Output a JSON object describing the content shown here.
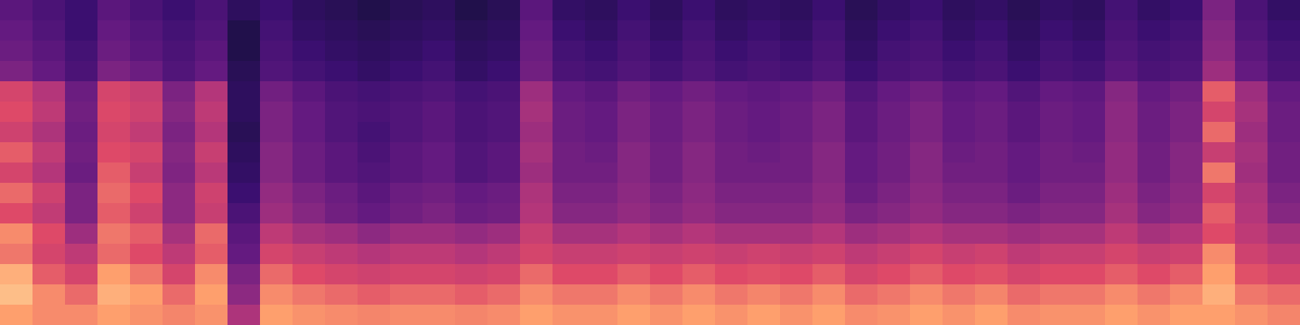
{
  "chart_data": {
    "type": "heatmap",
    "tick_labels": false,
    "zlim": [
      0,
      100
    ],
    "cells": [
      [
        35,
        30,
        25,
        35,
        30,
        25,
        30,
        20,
        25,
        20,
        18,
        15,
        18,
        20,
        15,
        18,
        35,
        22,
        20,
        25,
        20,
        25,
        20,
        22,
        20,
        25,
        18,
        22,
        25,
        20,
        22,
        18,
        22,
        20,
        28,
        22,
        25,
        45,
        30,
        22
      ],
      [
        38,
        32,
        25,
        38,
        33,
        28,
        32,
        15,
        28,
        22,
        20,
        18,
        20,
        22,
        18,
        20,
        38,
        25,
        22,
        28,
        22,
        28,
        22,
        25,
        22,
        28,
        20,
        25,
        28,
        22,
        25,
        20,
        25,
        22,
        30,
        25,
        28,
        48,
        32,
        25
      ],
      [
        40,
        35,
        28,
        40,
        35,
        30,
        35,
        15,
        30,
        25,
        22,
        20,
        22,
        25,
        20,
        22,
        40,
        28,
        25,
        30,
        25,
        30,
        25,
        28,
        25,
        30,
        22,
        28,
        30,
        25,
        28,
        22,
        28,
        25,
        32,
        28,
        30,
        50,
        35,
        28
      ],
      [
        45,
        38,
        30,
        45,
        40,
        32,
        38,
        18,
        32,
        28,
        25,
        22,
        25,
        28,
        22,
        25,
        42,
        30,
        28,
        32,
        28,
        32,
        28,
        30,
        28,
        32,
        25,
        30,
        32,
        28,
        30,
        25,
        30,
        28,
        35,
        30,
        32,
        55,
        38,
        30
      ],
      [
        72,
        62,
        40,
        72,
        68,
        45,
        62,
        20,
        42,
        35,
        30,
        28,
        30,
        32,
        28,
        30,
        55,
        38,
        35,
        42,
        38,
        42,
        38,
        36,
        38,
        42,
        32,
        38,
        42,
        36,
        38,
        32,
        38,
        36,
        48,
        38,
        42,
        78,
        55,
        38
      ],
      [
        75,
        65,
        42,
        74,
        70,
        48,
        65,
        20,
        45,
        38,
        32,
        30,
        32,
        35,
        30,
        32,
        58,
        40,
        38,
        45,
        40,
        45,
        40,
        38,
        40,
        45,
        35,
        40,
        45,
        38,
        40,
        35,
        40,
        38,
        50,
        40,
        45,
        72,
        58,
        40
      ],
      [
        70,
        60,
        40,
        72,
        66,
        45,
        62,
        18,
        45,
        38,
        32,
        28,
        32,
        35,
        30,
        32,
        55,
        40,
        38,
        45,
        40,
        45,
        40,
        38,
        40,
        45,
        35,
        40,
        45,
        38,
        40,
        35,
        40,
        38,
        50,
        40,
        45,
        80,
        55,
        40
      ],
      [
        78,
        66,
        42,
        75,
        72,
        48,
        68,
        20,
        48,
        40,
        35,
        30,
        35,
        38,
        32,
        35,
        58,
        42,
        40,
        48,
        42,
        48,
        42,
        40,
        42,
        48,
        38,
        42,
        48,
        40,
        42,
        38,
        42,
        40,
        52,
        42,
        48,
        68,
        58,
        42
      ],
      [
        72,
        62,
        40,
        78,
        68,
        46,
        64,
        22,
        48,
        40,
        35,
        32,
        35,
        38,
        32,
        35,
        55,
        42,
        42,
        48,
        42,
        48,
        42,
        42,
        42,
        48,
        38,
        42,
        48,
        42,
        42,
        38,
        42,
        42,
        52,
        42,
        48,
        82,
        56,
        42
      ],
      [
        80,
        70,
        45,
        80,
        75,
        50,
        70,
        25,
        52,
        45,
        40,
        35,
        40,
        42,
        38,
        40,
        60,
        45,
        45,
        50,
        45,
        50,
        45,
        45,
        45,
        50,
        40,
        45,
        50,
        45,
        45,
        40,
        45,
        45,
        55,
        45,
        50,
        72,
        60,
        45
      ],
      [
        75,
        66,
        45,
        78,
        70,
        50,
        68,
        30,
        55,
        48,
        42,
        38,
        42,
        45,
        40,
        42,
        62,
        48,
        48,
        52,
        48,
        52,
        48,
        48,
        48,
        52,
        45,
        48,
        52,
        48,
        48,
        45,
        48,
        48,
        58,
        48,
        52,
        78,
        62,
        48
      ],
      [
        85,
        75,
        55,
        82,
        78,
        58,
        80,
        35,
        65,
        58,
        55,
        50,
        55,
        55,
        52,
        55,
        68,
        58,
        58,
        62,
        58,
        62,
        58,
        58,
        58,
        62,
        55,
        58,
        62,
        58,
        58,
        55,
        58,
        58,
        65,
        58,
        62,
        75,
        65,
        58
      ],
      [
        82,
        72,
        65,
        80,
        75,
        65,
        78,
        38,
        72,
        68,
        65,
        62,
        65,
        65,
        62,
        65,
        72,
        68,
        68,
        70,
        68,
        70,
        68,
        70,
        68,
        70,
        65,
        68,
        72,
        68,
        70,
        65,
        68,
        68,
        72,
        68,
        70,
        85,
        70,
        65
      ],
      [
        90,
        78,
        72,
        88,
        82,
        72,
        85,
        45,
        80,
        75,
        72,
        70,
        72,
        72,
        70,
        72,
        80,
        75,
        75,
        78,
        75,
        78,
        75,
        76,
        75,
        78,
        72,
        75,
        78,
        75,
        76,
        72,
        75,
        75,
        78,
        75,
        78,
        88,
        76,
        72
      ],
      [
        92,
        85,
        80,
        90,
        88,
        80,
        88,
        50,
        85,
        82,
        80,
        78,
        80,
        80,
        78,
        80,
        85,
        82,
        82,
        85,
        82,
        85,
        82,
        84,
        82,
        85,
        80,
        82,
        85,
        82,
        84,
        80,
        82,
        82,
        85,
        82,
        85,
        90,
        82,
        80
      ],
      [
        88,
        85,
        85,
        88,
        86,
        84,
        86,
        60,
        88,
        86,
        85,
        84,
        85,
        85,
        84,
        85,
        88,
        86,
        86,
        88,
        86,
        88,
        86,
        88,
        86,
        88,
        85,
        86,
        88,
        86,
        88,
        85,
        86,
        86,
        88,
        86,
        88,
        88,
        86,
        84
      ]
    ]
  }
}
